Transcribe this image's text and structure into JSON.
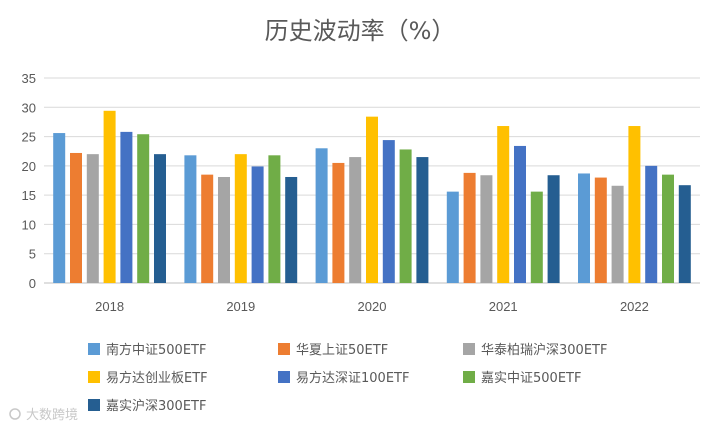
{
  "chart_data": {
    "type": "bar",
    "title": "历史波动率（%）",
    "xlabel": "",
    "ylabel": "",
    "ylim": [
      0,
      35
    ],
    "yticks": [
      0,
      5,
      10,
      15,
      20,
      25,
      30,
      35
    ],
    "grid": true,
    "legend_position": "bottom",
    "categories": [
      "2018",
      "2019",
      "2020",
      "2021",
      "2022"
    ],
    "series": [
      {
        "name": "南方中证500ETF",
        "color": "#5b9bd5",
        "values": [
          25.6,
          21.8,
          23.0,
          15.6,
          18.7
        ]
      },
      {
        "name": "华夏上证50ETF",
        "color": "#ed7d31",
        "values": [
          22.2,
          18.5,
          20.5,
          18.8,
          18.0
        ]
      },
      {
        "name": "华泰柏瑞沪深300ETF",
        "color": "#a5a5a5",
        "values": [
          22.0,
          18.1,
          21.5,
          18.4,
          16.6
        ]
      },
      {
        "name": "易方达创业板ETF",
        "color": "#ffc000",
        "values": [
          29.4,
          22.0,
          28.4,
          26.8,
          26.8
        ]
      },
      {
        "name": "易方达深证100ETF",
        "color": "#4472c4",
        "values": [
          25.8,
          19.9,
          24.4,
          23.4,
          20.0
        ]
      },
      {
        "name": "嘉实中证500ETF",
        "color": "#70ad47",
        "values": [
          25.4,
          21.8,
          22.8,
          15.6,
          18.5
        ]
      },
      {
        "name": "嘉实沪深300ETF",
        "color": "#255e91",
        "values": [
          22.0,
          18.1,
          21.5,
          18.4,
          16.7
        ]
      }
    ]
  },
  "watermark": "大数跨境"
}
